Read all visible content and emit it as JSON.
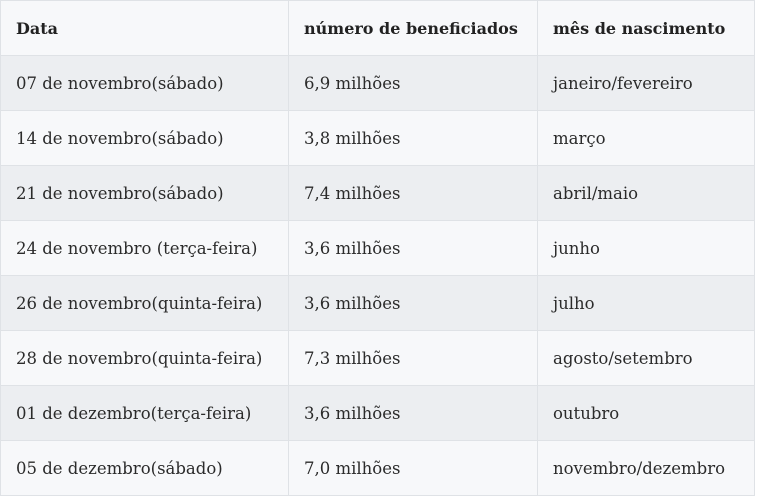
{
  "table": {
    "headers": [
      "Data",
      "número de beneficiados",
      "mês de nascimento"
    ],
    "rows": [
      [
        "07 de novembro(sábado)",
        "6,9 milhões",
        "janeiro/fevereiro"
      ],
      [
        "14 de novembro(sábado)",
        "3,8 milhões",
        "março"
      ],
      [
        "21 de novembro(sábado)",
        "7,4 milhões",
        "abril/maio"
      ],
      [
        "24 de novembro (terça-feira)",
        "3,6 milhões",
        "junho"
      ],
      [
        "26 de novembro(quinta-feira)",
        "3,6 milhões",
        "julho"
      ],
      [
        "28 de novembro(quinta-feira)",
        "7,3 milhões",
        "agosto/setembro"
      ],
      [
        "01 de dezembro(terça-feira)",
        "3,6 milhões",
        "outubro"
      ],
      [
        "05 de dezembro(sábado)",
        "7,0 milhões",
        "novembro/dezembro"
      ]
    ]
  }
}
